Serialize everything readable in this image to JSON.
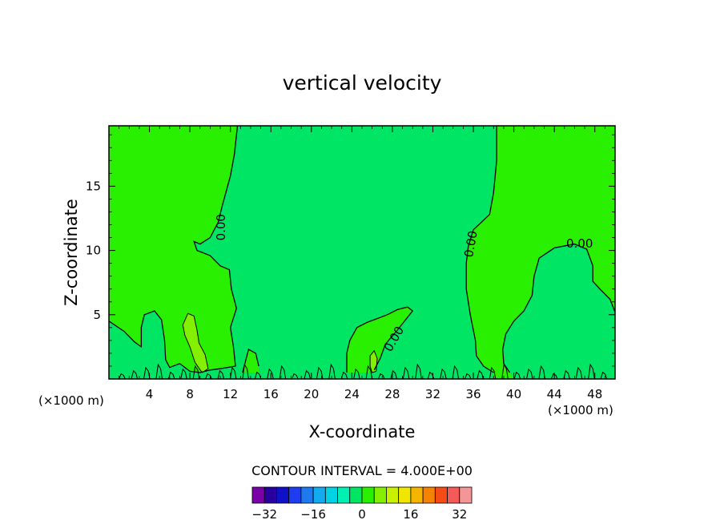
{
  "chart_data": {
    "type": "contour",
    "title": "vertical velocity",
    "xlabel": "X-coordinate",
    "ylabel": "Z-coordinate",
    "x_unit": "(×1000 m)",
    "y_unit": "(×1000 m)",
    "xlim": [
      0,
      50
    ],
    "ylim": [
      0,
      19.7
    ],
    "x_ticks": [
      4,
      8,
      12,
      16,
      20,
      24,
      28,
      32,
      36,
      40,
      44,
      48
    ],
    "y_ticks": [
      5,
      10,
      15
    ],
    "contour_interval_label": "CONTOUR INTERVAL = 4.000E+00",
    "contour_label_value": "0.00",
    "colorbar": {
      "min": -36,
      "max": 36,
      "step": 4,
      "tick_values": [
        -32,
        -16,
        0,
        16,
        32
      ],
      "tick_labels": [
        "−32",
        "−16",
        "0",
        "16",
        "32"
      ],
      "colors": [
        "#7a00a8",
        "#2800a0",
        "#1010c8",
        "#1e3cf0",
        "#1e78f0",
        "#14aaf0",
        "#00d2e6",
        "#00f0b4",
        "#00e664",
        "#28f000",
        "#82f000",
        "#c8f000",
        "#f0e600",
        "#f5b400",
        "#f58200",
        "#f54b14",
        "#f55a5a",
        "#f59696"
      ]
    },
    "regions": [
      {
        "value_range": [
          -4,
          0
        ],
        "color": "#28f000"
      },
      {
        "value_range": [
          0,
          4
        ],
        "color": "#00e664"
      },
      {
        "value_range": [
          4,
          8
        ],
        "color": "#82f000"
      }
    ],
    "zero_contours": [
      [
        [
          0,
          4.5
        ],
        [
          1.5,
          3.7
        ],
        [
          2.5,
          2.9
        ],
        [
          3.2,
          2.5
        ],
        [
          3.2,
          4.0
        ],
        [
          3.5,
          5.0
        ],
        [
          4.5,
          5.3
        ],
        [
          5.2,
          4.6
        ],
        [
          5.5,
          3.0
        ],
        [
          5.6,
          1.5
        ],
        [
          6.0,
          0.9
        ],
        [
          7.0,
          1.2
        ],
        [
          8.0,
          0.6
        ],
        [
          9.0,
          0.5
        ],
        [
          10.0,
          0.7
        ],
        [
          11.0,
          0.8
        ],
        [
          12.5,
          1.0
        ],
        [
          12.3,
          2.5
        ],
        [
          12.0,
          4.0
        ],
        [
          12.6,
          5.5
        ],
        [
          12.1,
          7.0
        ],
        [
          11.9,
          8.5
        ],
        [
          11.0,
          8.8
        ],
        [
          10.0,
          9.6
        ],
        [
          8.7,
          10.0
        ],
        [
          8.4,
          10.7
        ],
        [
          9.0,
          10.5
        ],
        [
          10.0,
          11.0
        ],
        [
          10.8,
          12.2
        ],
        [
          11.2,
          13.5
        ],
        [
          12.0,
          15.8
        ],
        [
          12.4,
          17.5
        ],
        [
          12.7,
          19.7
        ]
      ],
      [
        [
          13.2,
          0.5
        ],
        [
          13.8,
          2.3
        ],
        [
          14.5,
          2.0
        ],
        [
          14.8,
          1.0
        ]
      ],
      [
        [
          23.5,
          0.5
        ],
        [
          23.5,
          2.0
        ],
        [
          23.8,
          3.0
        ],
        [
          24.5,
          4.0
        ],
        [
          25.5,
          4.4
        ],
        [
          26.5,
          4.7
        ],
        [
          27.5,
          5.0
        ],
        [
          28.5,
          5.4
        ],
        [
          29.5,
          5.6
        ],
        [
          30.0,
          5.3
        ],
        [
          29.5,
          4.8
        ],
        [
          28.5,
          3.8
        ],
        [
          27.3,
          2.7
        ],
        [
          26.8,
          1.6
        ],
        [
          26.2,
          0.7
        ]
      ],
      [
        [
          38.3,
          19.7
        ],
        [
          38.3,
          17.0
        ],
        [
          38.0,
          14.5
        ],
        [
          37.6,
          12.8
        ],
        [
          36.0,
          11.6
        ],
        [
          35.5,
          10.3
        ],
        [
          35.3,
          9.0
        ],
        [
          35.3,
          7.0
        ],
        [
          35.7,
          5.0
        ],
        [
          36.2,
          3.0
        ],
        [
          36.3,
          1.8
        ],
        [
          37.0,
          1.0
        ],
        [
          38.0,
          0.5
        ]
      ],
      [
        [
          50,
          5.2
        ],
        [
          49.5,
          6.2
        ],
        [
          48.5,
          7.0
        ],
        [
          47.8,
          7.6
        ],
        [
          47.8,
          8.8
        ],
        [
          47.2,
          10.1
        ],
        [
          46.0,
          10.5
        ],
        [
          44.0,
          10.2
        ],
        [
          42.5,
          9.4
        ],
        [
          42.0,
          8.0
        ],
        [
          41.8,
          6.5
        ],
        [
          41.0,
          5.3
        ],
        [
          40.0,
          4.5
        ],
        [
          39.2,
          3.5
        ],
        [
          38.9,
          2.3
        ],
        [
          39.0,
          1.2
        ],
        [
          39.6,
          0.5
        ]
      ]
    ],
    "positive_patches": [
      [
        [
          7.3,
          4.2
        ],
        [
          7.8,
          5.1
        ],
        [
          8.4,
          4.9
        ],
        [
          8.7,
          3.8
        ],
        [
          8.9,
          2.8
        ],
        [
          9.5,
          1.9
        ],
        [
          9.8,
          0.8
        ],
        [
          9.2,
          0.5
        ],
        [
          8.5,
          1.3
        ],
        [
          8.0,
          2.5
        ],
        [
          7.5,
          3.4
        ]
      ],
      [
        [
          25.8,
          1.8
        ],
        [
          26.2,
          2.2
        ],
        [
          26.5,
          1.6
        ],
        [
          26.4,
          0.6
        ],
        [
          26.0,
          0.5
        ],
        [
          25.8,
          1.0
        ]
      ]
    ],
    "contour_labels": [
      {
        "x": 11.1,
        "y": 11.8,
        "angle": -90,
        "text": "0.00"
      },
      {
        "x": 28.2,
        "y": 3.1,
        "angle": -60,
        "text": "0.00"
      },
      {
        "x": 35.8,
        "y": 10.5,
        "angle": -80,
        "text": "0.00"
      },
      {
        "x": 46.5,
        "y": 10.5,
        "angle": 0,
        "text": "0.00"
      }
    ]
  }
}
